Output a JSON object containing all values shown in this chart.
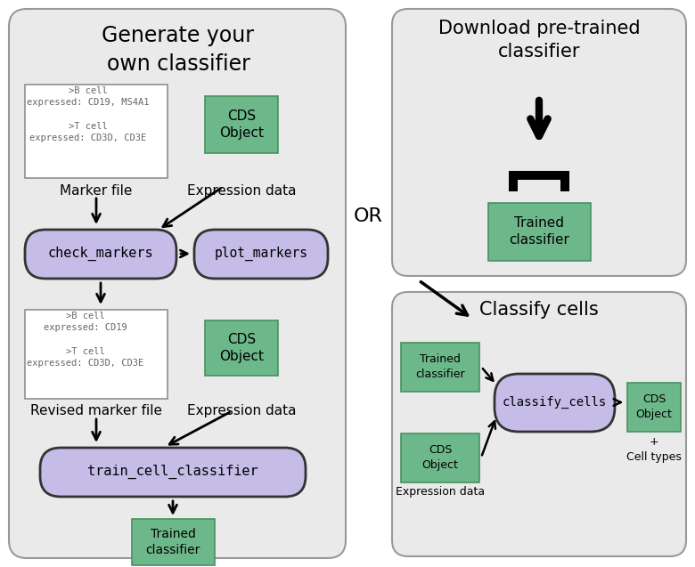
{
  "fig_w": 7.8,
  "fig_h": 6.37,
  "dpi": 100,
  "panel_facecolor": "#e8e8e8",
  "panel_edgecolor": "#aaaaaa",
  "purple_color": "#c5bce8",
  "green_color": "#6db88a",
  "green_light": "#7ec89a",
  "white_color": "#ffffff",
  "left_panel_title": "Generate your\nown classifier",
  "right_top_title": "Download pre-trained\nclassifier",
  "right_bot_title": "Classify cells",
  "marker_text1": ">B cell\nexpressed: CD19, MS4A1\n\n>T cell\nexpressed: CD3D, CD3E",
  "marker_text2": ">B cell\nexpressed: CD19\n\n>T cell\nexpressed: CD3D, CD3E",
  "or_text": "OR"
}
